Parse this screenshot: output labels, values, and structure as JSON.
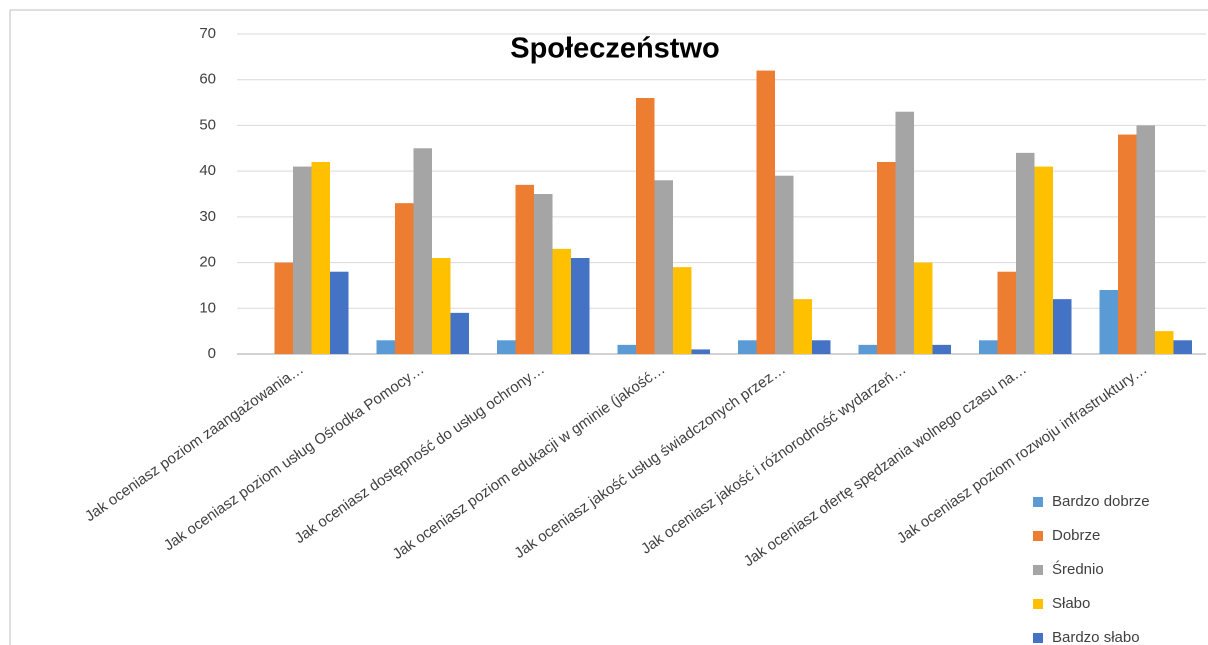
{
  "chart_data": {
    "type": "bar",
    "title": "Społeczeństwo",
    "categories": [
      "Jak oceniasz poziom zaangażowania…",
      "Jak oceniasz poziom usług Ośrodka Pomocy…",
      "Jak oceniasz dostępność do usług ochrony…",
      "Jak oceniasz poziom edukacji w gminie (jakość…",
      "Jak oceniasz jakość usług świadczonych przez…",
      "Jak oceniasz jakość i różnorodność wydarzeń…",
      "Jak oceniasz ofertę spędzania wolnego czasu na…",
      "Jak oceniasz poziom rozwoju infrastruktury…"
    ],
    "series": [
      {
        "name": "Bardzo dobrze",
        "color": "#5b9bd5",
        "values": [
          0,
          3,
          3,
          2,
          3,
          2,
          3,
          14
        ]
      },
      {
        "name": "Dobrze",
        "color": "#ed7d31",
        "values": [
          20,
          33,
          37,
          56,
          62,
          42,
          18,
          48
        ]
      },
      {
        "name": "Średnio",
        "color": "#a5a5a5",
        "values": [
          41,
          45,
          35,
          38,
          39,
          53,
          44,
          50
        ]
      },
      {
        "name": "Słabo",
        "color": "#ffc000",
        "values": [
          42,
          21,
          23,
          19,
          12,
          20,
          41,
          5
        ]
      },
      {
        "name": "Bardzo słabo",
        "color": "#4472c4",
        "values": [
          18,
          9,
          21,
          1,
          3,
          2,
          12,
          3
        ]
      }
    ],
    "ylim": [
      0,
      70
    ],
    "yticks": [
      0,
      10,
      20,
      30,
      40,
      50,
      60,
      70
    ],
    "grid": true,
    "legend": "bottom-right"
  }
}
